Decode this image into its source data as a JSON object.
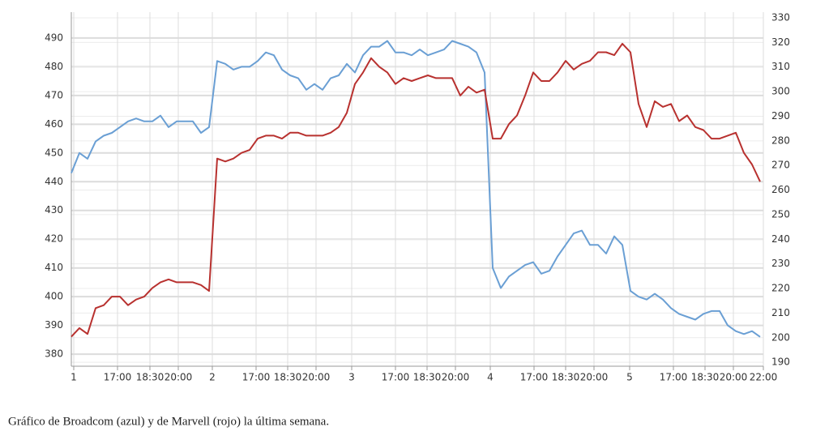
{
  "chart_data": {
    "type": "line",
    "caption": "Gráfico de Broadcom (azul) y de Marvell (rojo) la última semana.",
    "x": [
      0,
      1,
      2,
      3,
      4,
      5,
      6,
      7,
      8,
      9,
      10,
      11,
      12,
      13,
      14,
      15,
      16,
      17,
      18,
      19,
      20,
      21,
      22,
      23,
      24,
      25,
      26,
      27,
      28,
      29,
      30,
      31,
      32,
      33,
      34,
      35,
      36,
      37,
      38,
      39,
      40,
      41,
      42,
      43,
      44,
      45,
      46,
      47,
      48,
      49,
      50,
      51,
      52,
      53,
      54,
      55,
      56,
      57,
      58,
      59,
      60,
      61,
      62,
      63,
      64,
      65,
      66,
      67,
      68,
      69,
      70,
      71,
      72,
      73,
      74,
      75,
      76,
      77,
      78,
      79,
      80,
      81,
      82,
      83,
      84,
      85
    ],
    "xlim": [
      0,
      85.4
    ],
    "xticks": [
      {
        "value": 0.3,
        "label": "1"
      },
      {
        "value": 5.7,
        "label": "17:00"
      },
      {
        "value": 9.7,
        "label": "18:30"
      },
      {
        "value": 13.2,
        "label": "20:00"
      },
      {
        "value": 17.4,
        "label": "2"
      },
      {
        "value": 22.8,
        "label": "17:00"
      },
      {
        "value": 26.7,
        "label": "18:30"
      },
      {
        "value": 30.2,
        "label": "20:00"
      },
      {
        "value": 34.6,
        "label": "3"
      },
      {
        "value": 40.0,
        "label": "17:00"
      },
      {
        "value": 43.9,
        "label": "18:30"
      },
      {
        "value": 47.4,
        "label": "20:00"
      },
      {
        "value": 51.7,
        "label": "4"
      },
      {
        "value": 57.1,
        "label": "17:00"
      },
      {
        "value": 61.0,
        "label": "18:30"
      },
      {
        "value": 64.5,
        "label": "20:00"
      },
      {
        "value": 68.9,
        "label": "5"
      },
      {
        "value": 74.3,
        "label": "17:00"
      },
      {
        "value": 78.2,
        "label": "18:30"
      },
      {
        "value": 81.7,
        "label": "20:00"
      },
      {
        "value": 85.4,
        "label": "22:00"
      }
    ],
    "ylim": [
      375.8,
      499
    ],
    "yticks": [
      380,
      390,
      400,
      410,
      420,
      430,
      440,
      450,
      460,
      470,
      480,
      490
    ],
    "y2lim": [
      188.4,
      332.3
    ],
    "y2ticks": [
      190,
      200,
      210,
      220,
      230,
      240,
      250,
      260,
      270,
      280,
      290,
      300,
      310,
      320,
      330
    ],
    "grid": true,
    "series": [
      {
        "color": "#6a9fd4",
        "values": [
          443,
          450,
          448,
          454,
          456,
          457,
          459,
          461,
          462,
          461,
          461,
          463,
          459,
          461,
          461,
          461,
          457,
          459,
          482,
          481,
          479,
          480,
          480,
          482,
          485,
          484,
          479,
          477,
          476,
          472,
          474,
          472,
          476,
          477,
          481,
          478,
          484,
          487,
          487,
          489,
          485,
          485,
          484,
          486,
          484,
          485,
          486,
          489,
          488,
          487,
          485,
          478,
          410,
          403,
          407,
          409,
          411,
          412,
          408,
          409,
          414,
          418,
          422,
          423,
          418,
          418,
          415,
          421,
          418,
          402,
          400,
          399,
          401,
          399,
          396,
          394,
          393,
          392,
          394,
          395,
          395,
          390,
          388,
          387,
          388,
          386
        ]
      },
      {
        "color": "#b8312f",
        "axis": "y2",
        "values": [
          200.4,
          203.9,
          201.5,
          212.0,
          213.2,
          216.7,
          216.7,
          213.2,
          215.5,
          216.7,
          220.2,
          222.5,
          223.7,
          222.5,
          222.5,
          222.5,
          221.4,
          219.0,
          272.8,
          271.6,
          272.8,
          275.1,
          276.3,
          280.9,
          282.1,
          282.1,
          280.9,
          283.3,
          283.3,
          282.1,
          282.1,
          282.1,
          283.3,
          285.6,
          291.4,
          303.1,
          307.8,
          313.6,
          310.1,
          307.8,
          303.1,
          305.5,
          304.3,
          305.5,
          306.6,
          305.5,
          305.5,
          305.5,
          298.4,
          302.0,
          299.6,
          300.8,
          280.9,
          280.9,
          286.8,
          290.3,
          298.4,
          307.8,
          304.3,
          304.3,
          307.8,
          312.5,
          309.0,
          311.3,
          312.5,
          316.0,
          316.0,
          314.8,
          319.5,
          316.0,
          295.0,
          285.6,
          296.1,
          293.8,
          295.0,
          288.0,
          290.3,
          285.6,
          284.4,
          280.9,
          280.9,
          282.1,
          283.3,
          275.1,
          270.4,
          263.4
        ]
      }
    ]
  }
}
